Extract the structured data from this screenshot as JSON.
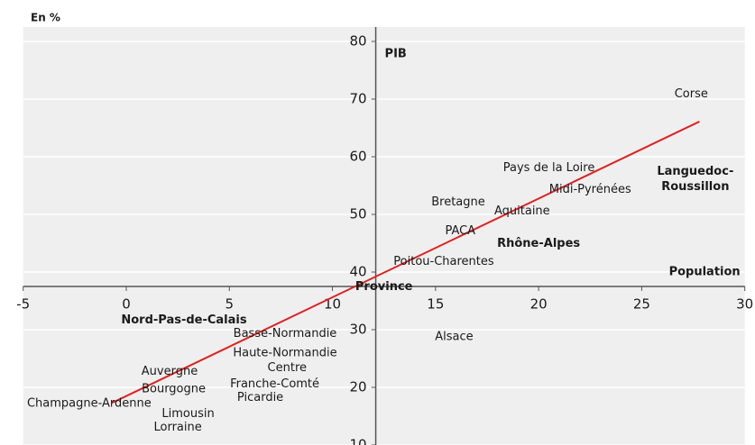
{
  "chart_data": {
    "type": "scatter",
    "title": "En %",
    "y_label": "PIB",
    "x_label": "Population",
    "xlim": [
      -5,
      30
    ],
    "xticks": [
      -5,
      0,
      5,
      10,
      15,
      20,
      25,
      30
    ],
    "ylim": [
      10,
      82.5
    ],
    "yticks": [
      10,
      20,
      30,
      40,
      50,
      60,
      70,
      80
    ],
    "x_axis_at_y": 37.5,
    "y_axis_at_x": 12.1,
    "grid": true,
    "background": "#efefef",
    "label_color": "#1a1a1a",
    "highlight_color": "#e8383d",
    "points": [
      {
        "label": "Corse",
        "x": 27.4,
        "y": 70.9
      },
      {
        "label": "Pays de la Loire",
        "x": 20.5,
        "y": 58.1
      },
      {
        "label": "Midi-Pyrénées",
        "x": 22.5,
        "y": 54.4
      },
      {
        "label": "Languedoc-\nRoussillon",
        "x": 27.6,
        "y": 57.5,
        "highlight": true
      },
      {
        "label": "Bretagne",
        "x": 16.1,
        "y": 52.2
      },
      {
        "label": "Aquitaine",
        "x": 19.2,
        "y": 50.6
      },
      {
        "label": "PACA",
        "x": 16.2,
        "y": 47.2
      },
      {
        "label": "Rhône-Alpes",
        "x": 20.0,
        "y": 45.0,
        "highlight": true
      },
      {
        "label": "Poitou-Charentes",
        "x": 15.4,
        "y": 41.9
      },
      {
        "label": "Province",
        "x": 12.5,
        "y": 37.5,
        "highlight": true
      },
      {
        "label": "Nord-Pas-de-Calais",
        "x": 2.8,
        "y": 31.7,
        "highlight": true
      },
      {
        "label": "Basse-Normandie",
        "x": 7.7,
        "y": 29.4
      },
      {
        "label": "Alsace",
        "x": 15.9,
        "y": 28.8
      },
      {
        "label": "Haute-Normandie",
        "x": 7.7,
        "y": 26.0
      },
      {
        "label": "Centre",
        "x": 7.8,
        "y": 23.4
      },
      {
        "label": "Auvergne",
        "x": 2.1,
        "y": 22.8
      },
      {
        "label": "Franche-Comté",
        "x": 7.2,
        "y": 20.6
      },
      {
        "label": "Bourgogne",
        "x": 2.3,
        "y": 19.8
      },
      {
        "label": "Picardie",
        "x": 6.5,
        "y": 18.3
      },
      {
        "label": "Champagne-Ardenne",
        "x": -1.8,
        "y": 17.3
      },
      {
        "label": "Limousin",
        "x": 3.0,
        "y": 15.5
      },
      {
        "label": "Lorraine",
        "x": 2.5,
        "y": 13.1
      }
    ],
    "trendline": {
      "x": [
        -0.7,
        27.8
      ],
      "y": [
        17.3,
        66.1
      ],
      "color": "#e02020"
    }
  }
}
